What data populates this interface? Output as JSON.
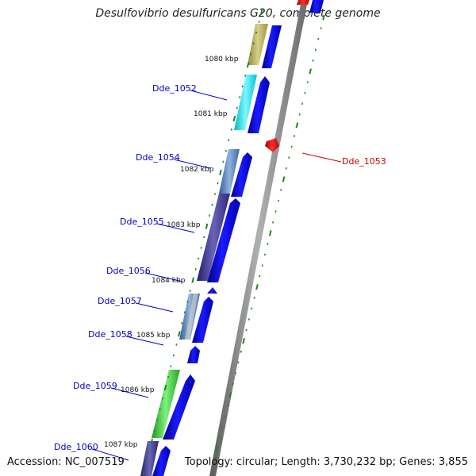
{
  "title": "Desulfovibrio desulfuricans G20, complete genome",
  "accession": "Accession: NC_007519",
  "summary": "Topology: circular; Length: 3,730,232 bp; Genes: 3,855",
  "colors": {
    "forward_gene": "#0000e6",
    "reverse_gene": "#e60000",
    "label_forward": "#0000cc",
    "label_reverse": "#cc0000",
    "axis": "#8a8a8a",
    "tick": "#1a8a1a"
  },
  "ticks": [
    "1080 kbp",
    "1081 kbp",
    "1082 kbp",
    "1083 kbp",
    "1084 kbp",
    "1085 kbp",
    "1086 kbp",
    "1087 kbp"
  ],
  "genes": [
    {
      "label": "Dde_1052",
      "strand": "forward",
      "cog_color": "#00e5ee"
    },
    {
      "label": "Dde_1053",
      "strand": "reverse",
      "cog_color": ""
    },
    {
      "label": "Dde_1054",
      "strand": "forward",
      "cog_color": "#4f7fbf"
    },
    {
      "label": "Dde_1055",
      "strand": "forward",
      "cog_color": "#3f3a8c"
    },
    {
      "label": "Dde_1056",
      "strand": "forward",
      "cog_color": ""
    },
    {
      "label": "Dde_1057",
      "strand": "forward",
      "cog_color": "#4a7fb8"
    },
    {
      "label": "Dde_1058",
      "strand": "forward",
      "cog_color": ""
    },
    {
      "label": "Dde_1059",
      "strand": "forward",
      "cog_color": "#33cc33"
    },
    {
      "label": "Dde_1060",
      "strand": "forward",
      "cog_color": "#3f3a8c"
    }
  ]
}
